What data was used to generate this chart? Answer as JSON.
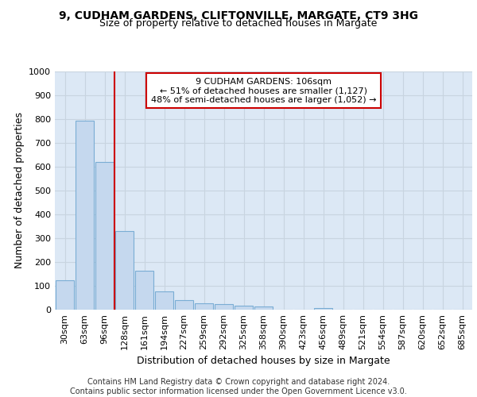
{
  "title1": "9, CUDHAM GARDENS, CLIFTONVILLE, MARGATE, CT9 3HG",
  "title2": "Size of property relative to detached houses in Margate",
  "xlabel": "Distribution of detached houses by size in Margate",
  "ylabel": "Number of detached properties",
  "categories": [
    "30sqm",
    "63sqm",
    "96sqm",
    "128sqm",
    "161sqm",
    "194sqm",
    "227sqm",
    "259sqm",
    "292sqm",
    "325sqm",
    "358sqm",
    "390sqm",
    "423sqm",
    "456sqm",
    "489sqm",
    "521sqm",
    "554sqm",
    "587sqm",
    "620sqm",
    "652sqm",
    "685sqm"
  ],
  "values": [
    125,
    795,
    620,
    330,
    163,
    78,
    40,
    28,
    24,
    17,
    14,
    0,
    0,
    8,
    0,
    0,
    0,
    0,
    0,
    0,
    0
  ],
  "bar_color": "#c5d8ee",
  "bar_edge_color": "#7aadd4",
  "vline_x": 2.5,
  "vline_color": "#cc0000",
  "annotation_text": "9 CUDHAM GARDENS: 106sqm\n← 51% of detached houses are smaller (1,127)\n48% of semi-detached houses are larger (1,052) →",
  "annotation_box_color": "#ffffff",
  "annotation_box_edge": "#cc0000",
  "ylim": [
    0,
    1000
  ],
  "yticks": [
    0,
    100,
    200,
    300,
    400,
    500,
    600,
    700,
    800,
    900,
    1000
  ],
  "grid_color": "#c8d4e0",
  "bg_color": "#dce8f5",
  "footer": "Contains HM Land Registry data © Crown copyright and database right 2024.\nContains public sector information licensed under the Open Government Licence v3.0.",
  "title_fontsize": 10,
  "subtitle_fontsize": 9,
  "axis_label_fontsize": 9,
  "tick_fontsize": 8,
  "annotation_fontsize": 8,
  "footer_fontsize": 7
}
